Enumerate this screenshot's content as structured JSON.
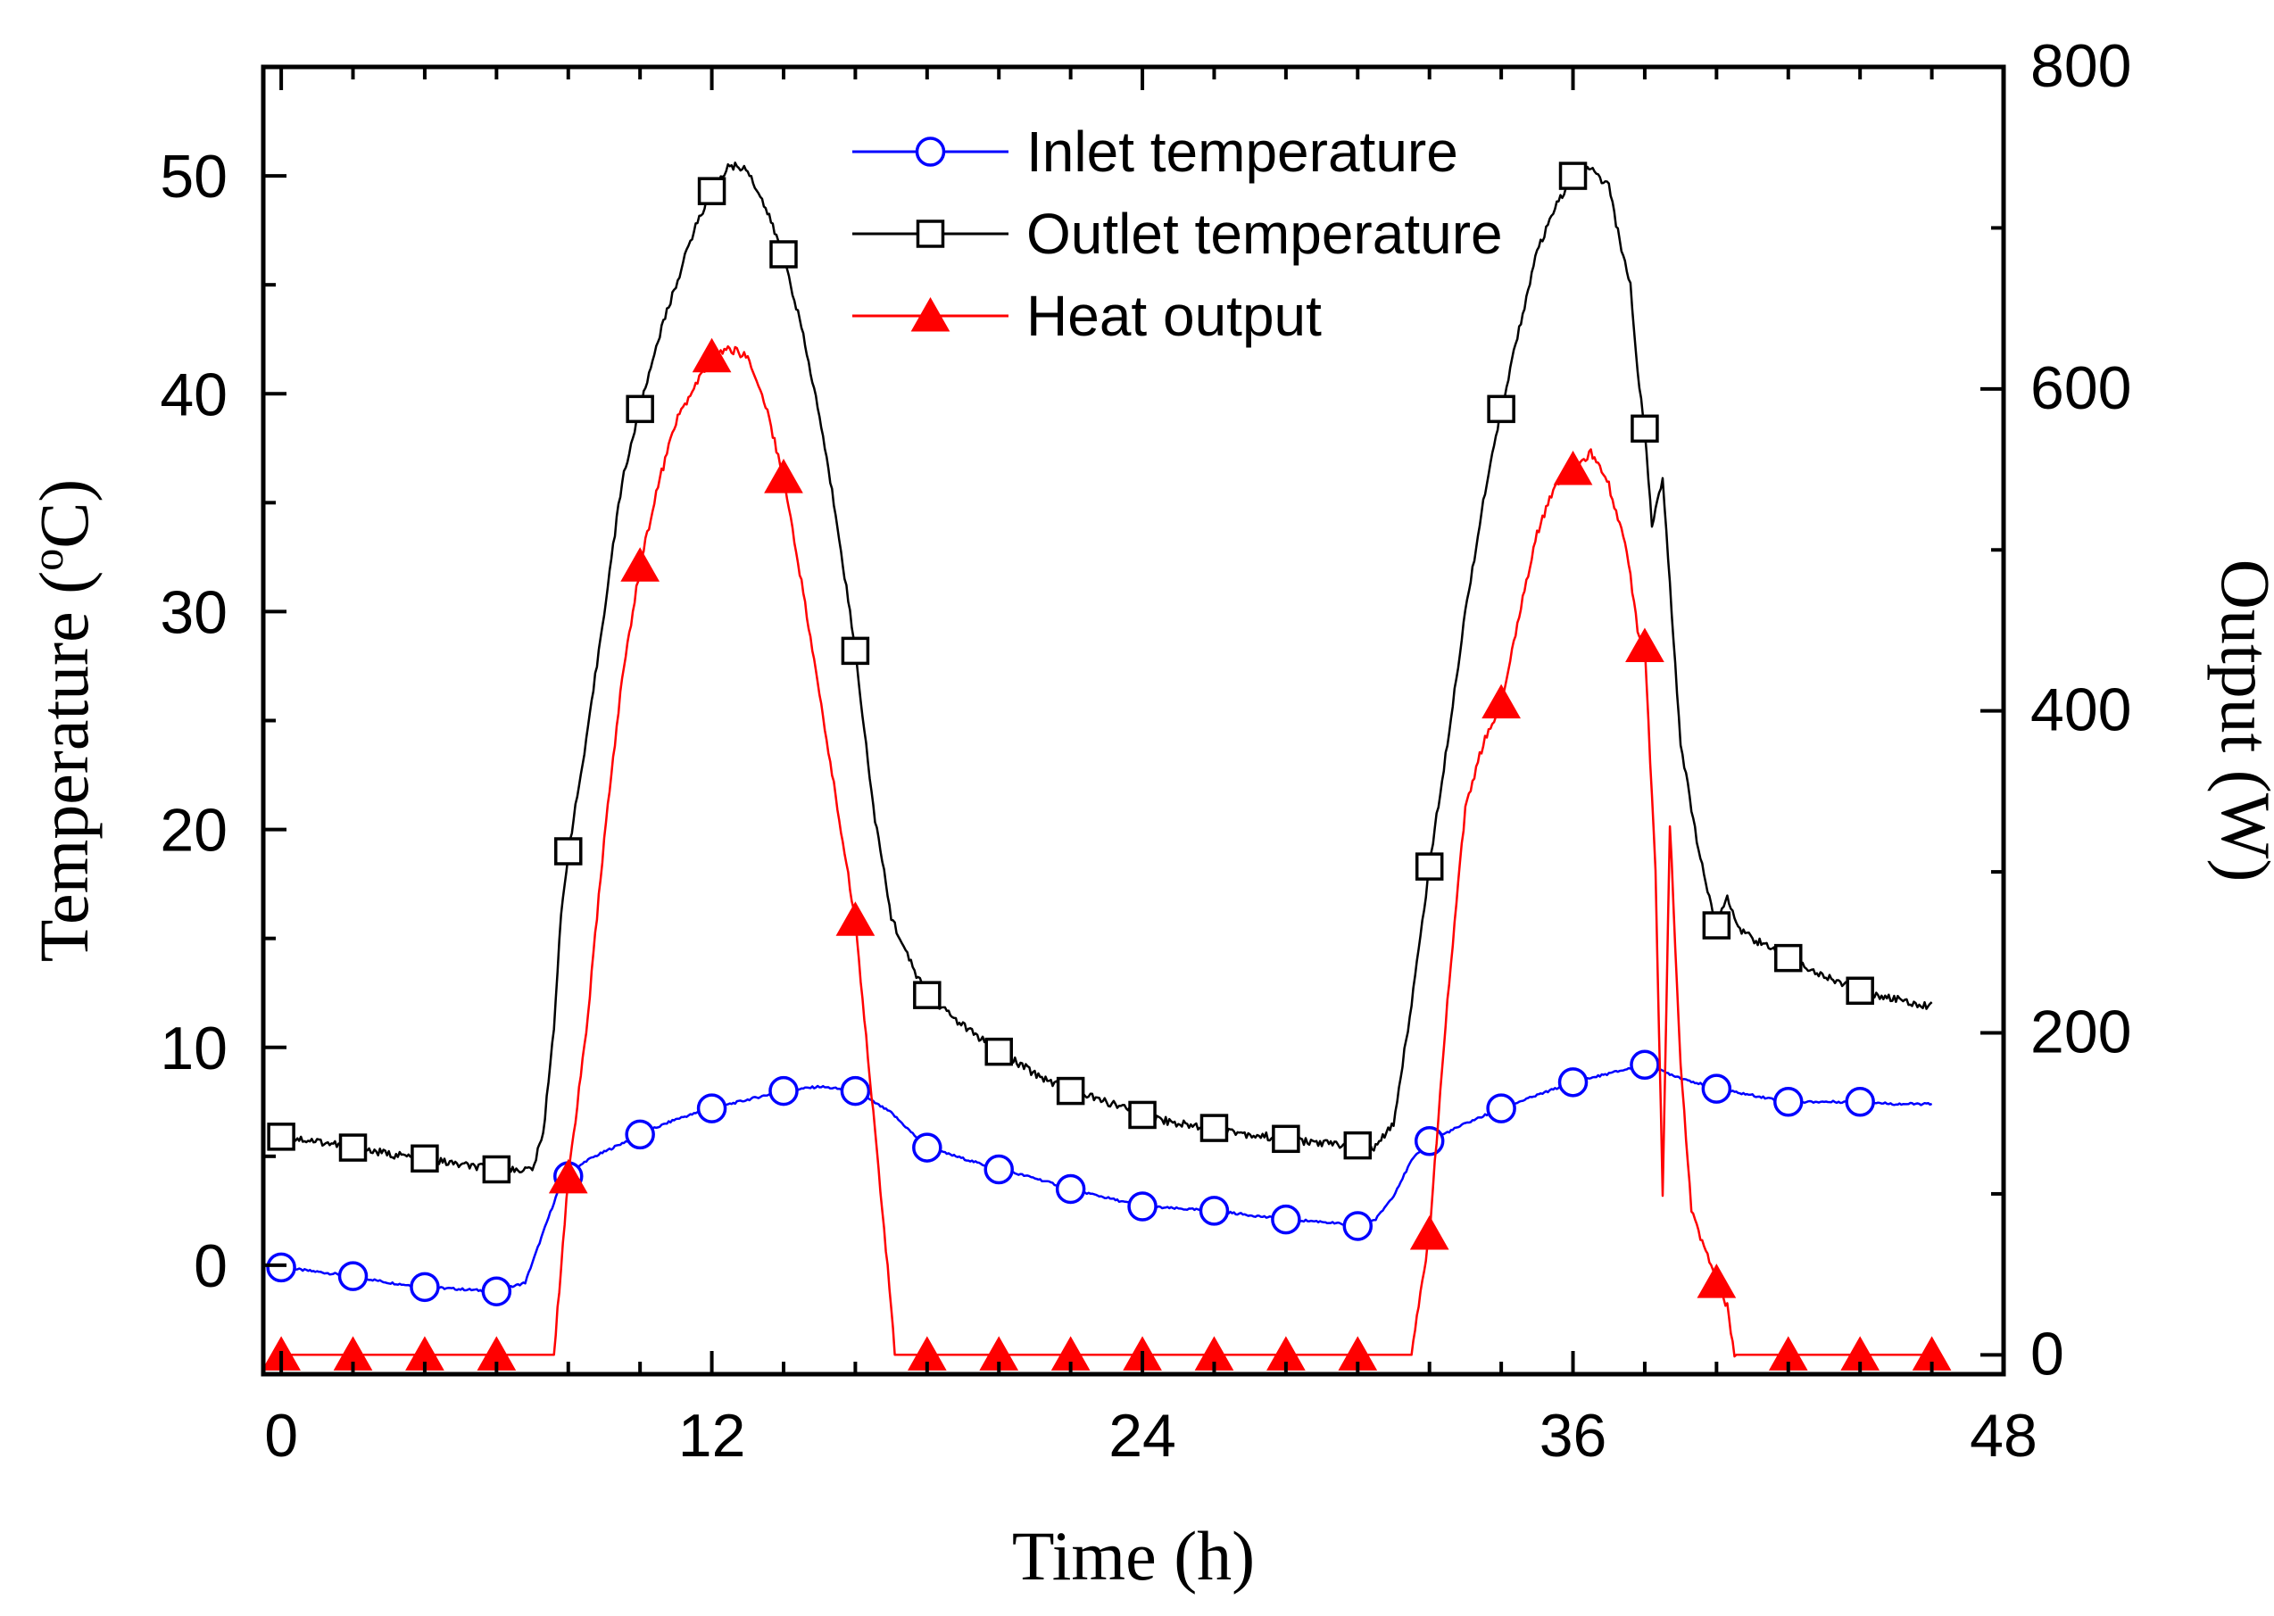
{
  "chart_data": {
    "type": "line",
    "title": "",
    "xlabel": "Time (h)",
    "ylabel_left_prefix": "Temperature (",
    "ylabel_left_sup": "o",
    "ylabel_left_suffix": "C)",
    "ylabel_right": "Output (W)",
    "xlim": [
      -0.5,
      48
    ],
    "ylim_left": [
      -5,
      55
    ],
    "ylim_right": [
      -12,
      800
    ],
    "x_ticks": [
      0,
      12,
      24,
      36,
      48
    ],
    "y_left_ticks": [
      0,
      10,
      20,
      30,
      40,
      50
    ],
    "y_right_ticks": [
      0,
      200,
      400,
      600,
      800
    ],
    "grid": false,
    "legend_position": "top-center",
    "series": [
      {
        "name": "Inlet temperature",
        "axis": "left",
        "color": "#0000ff",
        "marker": "circle",
        "x": [
          0,
          1,
          2,
          3,
          4,
          5,
          6,
          6.8,
          7.3,
          7.8,
          8.5,
          9.5,
          10,
          11,
          12,
          13,
          14,
          15,
          16,
          17,
          18,
          19,
          20,
          21,
          22,
          23,
          24,
          25,
          26,
          27,
          28,
          29,
          30,
          30.5,
          31,
          31.5,
          32,
          33,
          34,
          35,
          36,
          37,
          38,
          39,
          40,
          41,
          42,
          43,
          44,
          45,
          46
        ],
        "values": [
          -0.1,
          -0.3,
          -0.5,
          -0.8,
          -1.0,
          -1.1,
          -1.2,
          -0.8,
          1.5,
          3.8,
          4.8,
          5.6,
          6.0,
          6.7,
          7.2,
          7.6,
          8.0,
          8.2,
          8.0,
          7.0,
          5.4,
          4.9,
          4.4,
          4.0,
          3.5,
          3.1,
          2.7,
          2.6,
          2.5,
          2.3,
          2.1,
          2.0,
          1.8,
          2.1,
          3.2,
          4.8,
          5.7,
          6.5,
          7.2,
          7.8,
          8.4,
          8.8,
          9.2,
          8.6,
          8.1,
          7.8,
          7.5,
          7.5,
          7.5,
          7.4,
          7.4
        ],
        "marker_x": [
          0,
          2,
          4,
          6,
          8,
          10,
          12,
          14,
          16,
          18,
          20,
          22,
          24,
          26,
          28,
          30,
          32,
          34,
          36,
          38,
          40,
          42,
          44
        ]
      },
      {
        "name": "Outlet temperature",
        "axis": "left",
        "color": "#000000",
        "marker": "square",
        "x": [
          0,
          1,
          2,
          3,
          4,
          5,
          6,
          7,
          7.3,
          7.6,
          7.8,
          8,
          8.5,
          9,
          9.5,
          10,
          10.5,
          11,
          11.5,
          12,
          12.5,
          13,
          13.5,
          14,
          14.5,
          15,
          15.5,
          16,
          16.5,
          17,
          17.5,
          18,
          19,
          20,
          21,
          22,
          23,
          24,
          25,
          26,
          27,
          28,
          29,
          30,
          30.5,
          31,
          31.5,
          32,
          32.5,
          33,
          33.5,
          34,
          34.5,
          35,
          35.5,
          36,
          36.5,
          37,
          37.3,
          37.6,
          37.8,
          38,
          38.2,
          38.5,
          39,
          39.5,
          40,
          40.3,
          40.6,
          41,
          42,
          43,
          44,
          45,
          46
        ],
        "values": [
          5.9,
          5.7,
          5.4,
          5.1,
          4.9,
          4.6,
          4.4,
          4.4,
          6.0,
          11.0,
          16.0,
          19.0,
          24.0,
          30.0,
          36.0,
          39.3,
          42.5,
          45.0,
          47.5,
          49.3,
          50.5,
          50.3,
          48.5,
          46.4,
          43.0,
          39.0,
          34.0,
          28.2,
          21.0,
          16.0,
          14.0,
          12.4,
          11.0,
          9.8,
          8.8,
          8.0,
          7.5,
          6.9,
          6.5,
          6.3,
          6.0,
          5.8,
          5.6,
          5.5,
          5.4,
          6.5,
          12.0,
          18.3,
          24.0,
          30.0,
          35.0,
          39.3,
          43.0,
          46.5,
          48.5,
          50.0,
          50.3,
          49.5,
          47.0,
          45.0,
          41.0,
          38.4,
          34.0,
          36.0,
          24.0,
          19.0,
          15.6,
          17.0,
          15.5,
          15.0,
          14.1,
          13.3,
          12.6,
          12.2,
          11.9
        ],
        "marker_x": [
          0,
          2,
          4,
          6,
          8,
          10,
          12,
          14,
          16,
          18,
          20,
          22,
          24,
          26,
          28,
          30,
          32,
          34,
          36,
          38,
          40,
          42,
          44
        ]
      },
      {
        "name": "Heat output",
        "axis": "right",
        "color": "#ff0000",
        "marker": "triangle",
        "x": [
          0,
          2,
          4,
          6,
          7.6,
          8,
          8.5,
          9,
          9.5,
          10,
          10.5,
          11,
          11.5,
          12,
          12.5,
          13,
          13.5,
          14,
          14.5,
          15,
          15.5,
          16,
          16.5,
          17,
          17.1,
          18,
          20,
          22,
          24,
          26,
          28,
          30,
          31.5,
          32,
          32.5,
          33,
          33.5,
          34,
          34.5,
          35,
          35.5,
          36,
          36.5,
          37,
          37.5,
          37.8,
          38,
          38.3,
          38.5,
          38.7,
          39,
          39.3,
          39.6,
          40,
          40.3,
          40.5,
          42,
          44,
          46
        ],
        "values": [
          0,
          0,
          0,
          0,
          0,
          110,
          200,
          320,
          420,
          490,
          540,
          580,
          600,
          620,
          625,
          620,
          590,
          545,
          480,
          410,
          340,
          270,
          150,
          30,
          0,
          0,
          0,
          0,
          0,
          0,
          0,
          0,
          0,
          75,
          220,
          340,
          380,
          405,
          460,
          510,
          540,
          550,
          560,
          540,
          500,
          450,
          440,
          300,
          100,
          330,
          180,
          90,
          70,
          45,
          30,
          0,
          0,
          0,
          0
        ],
        "marker_x": [
          0,
          2,
          4,
          6,
          8,
          10,
          12,
          14,
          16,
          18,
          20,
          22,
          24,
          26,
          28,
          30,
          32,
          34,
          36,
          38,
          40,
          42,
          44,
          46
        ]
      }
    ]
  }
}
